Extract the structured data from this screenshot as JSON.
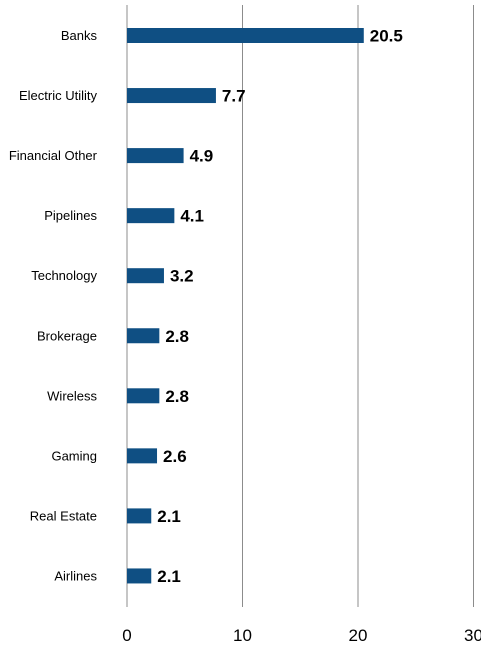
{
  "colors": {
    "bar": "#0f4f83",
    "grid": "#8c8c8c",
    "text": "#000000"
  },
  "chart_data": {
    "type": "bar",
    "orientation": "horizontal",
    "categories": [
      "Banks",
      "Electric Utility",
      "Financial Other",
      "Pipelines",
      "Technology",
      "Brokerage",
      "Wireless",
      "Gaming",
      "Real Estate",
      "Airlines"
    ],
    "values": [
      20.5,
      7.7,
      4.9,
      4.1,
      3.2,
      2.8,
      2.8,
      2.6,
      2.1,
      2.1
    ],
    "value_labels": [
      "20.5",
      "7.7",
      "4.9",
      "4.1",
      "3.2",
      "2.8",
      "2.8",
      "2.6",
      "2.1",
      "2.1"
    ],
    "xlim": [
      0,
      30
    ],
    "xticks": [
      0,
      10,
      20,
      30
    ],
    "xtick_labels": [
      "0",
      "10",
      "20",
      "30"
    ],
    "grid": "vertical",
    "legend": "none",
    "title": "",
    "xlabel": "",
    "ylabel": ""
  }
}
